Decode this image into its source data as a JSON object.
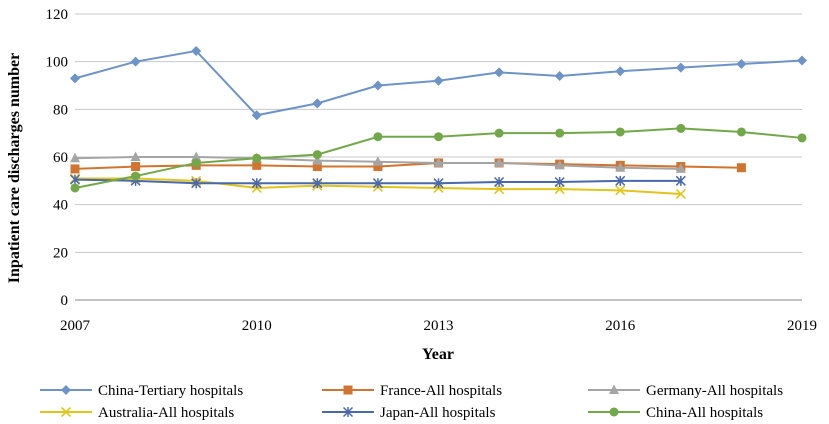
{
  "chart_data": {
    "type": "line",
    "title": "",
    "xlabel": "Year",
    "ylabel": "Inpatient care discharges number",
    "xlim": [
      2007,
      2019
    ],
    "ylim": [
      0,
      120
    ],
    "x_ticks": [
      "2007",
      "2010",
      "2013",
      "2016",
      "2019"
    ],
    "y_ticks": [
      "0",
      "20",
      "40",
      "60",
      "80",
      "100",
      "120"
    ],
    "grid": "horizontal",
    "legend_position": "bottom",
    "series": [
      {
        "name": "China-Tertiary hospitals",
        "color": "#6d93c9",
        "marker": "diamond",
        "x": [
          2007,
          2008,
          2009,
          2010,
          2011,
          2012,
          2013,
          2014,
          2015,
          2016,
          2017,
          2018,
          2019
        ],
        "values": [
          93,
          100,
          104.5,
          77.5,
          82.5,
          90,
          92,
          95.5,
          94,
          96,
          97.5,
          99,
          100.5
        ]
      },
      {
        "name": "France-All hospitals",
        "color": "#d1742f",
        "marker": "square",
        "x": [
          2007,
          2008,
          2009,
          2010,
          2011,
          2012,
          2013,
          2014,
          2015,
          2016,
          2017,
          2018
        ],
        "values": [
          55,
          56,
          56.5,
          56.5,
          56,
          56,
          57.5,
          57.5,
          57,
          56.5,
          56,
          55.5
        ]
      },
      {
        "name": "Germany-All hospitals",
        "color": "#a5a5a5",
        "marker": "triangle",
        "x": [
          2007,
          2008,
          2009,
          2010,
          2011,
          2012,
          2013,
          2014,
          2015,
          2016,
          2017
        ],
        "values": [
          59.5,
          60,
          60,
          59.5,
          58.5,
          58,
          57.5,
          57.5,
          56.5,
          55.5,
          55
        ]
      },
      {
        "name": "Australia-All hospitals",
        "color": "#e3c41b",
        "marker": "x",
        "x": [
          2007,
          2008,
          2009,
          2010,
          2011,
          2012,
          2013,
          2014,
          2015,
          2016,
          2017
        ],
        "values": [
          51,
          51,
          50,
          47,
          48,
          47.5,
          47,
          46.5,
          46.5,
          46,
          44.5
        ]
      },
      {
        "name": "Japan-All hospitals",
        "color": "#4a68ad",
        "marker": "star",
        "x": [
          2007,
          2008,
          2009,
          2010,
          2011,
          2012,
          2013,
          2014,
          2015,
          2016,
          2017
        ],
        "values": [
          50.5,
          50,
          49,
          49,
          49,
          49,
          49,
          49.5,
          49.5,
          50,
          50
        ]
      },
      {
        "name": "China-All hospitals",
        "color": "#72a84a",
        "marker": "circle",
        "x": [
          2007,
          2008,
          2009,
          2010,
          2011,
          2012,
          2013,
          2014,
          2015,
          2016,
          2017,
          2018,
          2019
        ],
        "values": [
          47,
          52,
          57.5,
          59.5,
          61,
          68.5,
          68.5,
          70,
          70,
          70.5,
          72,
          70.5,
          68
        ]
      }
    ]
  }
}
